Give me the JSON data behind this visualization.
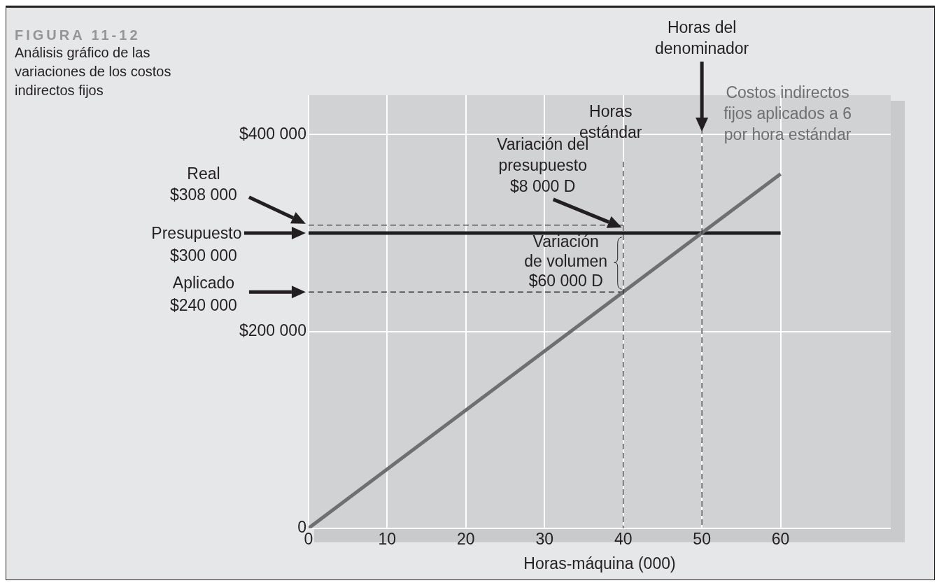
{
  "chart_data": {
    "type": "line",
    "title": "FIGURA 11-12",
    "subtitle": "Análisis gráfico de las variaciones de los costos indirectos fijos",
    "xlabel": "Horas-máquina (000)",
    "xlim": [
      0,
      74
    ],
    "xticks": [
      0,
      10,
      20,
      30,
      40,
      50,
      60
    ],
    "ylim": [
      0,
      440000
    ],
    "yticks": [
      0,
      {
        "value": 200000,
        "label": "$200 000"
      },
      {
        "value": 400000,
        "label": "$400 000"
      }
    ],
    "grid": true,
    "legend": false,
    "marker": "none",
    "series": [
      {
        "name": "Costos indirectos fijos aplicados a 6 por hora estándar",
        "color": "#6e6f71",
        "x": [
          0,
          60
        ],
        "values": [
          0,
          360000
        ]
      },
      {
        "color": "#1e1e1e",
        "x": [
          0,
          60
        ],
        "values": [
          300000,
          300000
        ]
      },
      {
        "color": "#333333",
        "x": [
          0,
          40
        ],
        "values": [
          308000,
          308000
        ],
        "line_style": "dashed"
      },
      {
        "color": "#333333",
        "x": [
          0,
          40
        ],
        "values": [
          240000,
          240000
        ],
        "line_style": "dashed"
      }
    ],
    "ref_lines": [
      {
        "axis": "x",
        "value": 40,
        "label": "Horas estándar",
        "line_style": "dashed",
        "color": "#333333"
      },
      {
        "axis": "x",
        "value": 50,
        "label": "Horas del denominador",
        "line_style": "dashed",
        "color": "#333333"
      }
    ],
    "annotations": [
      "Real $308 000",
      "Presupuesto $300 000",
      "Aplicado $240 000",
      "Variación del presupuesto $8 000 D",
      {
        "text": "Variación de volumen $60 000 D",
        "x": 40,
        "y": 270000
      }
    ]
  }
}
